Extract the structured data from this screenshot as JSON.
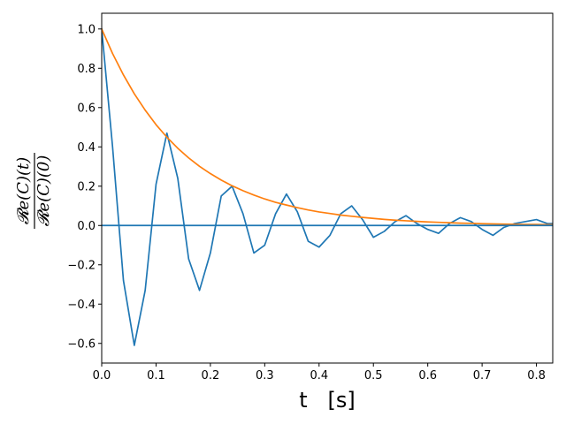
{
  "chart_data": {
    "type": "line",
    "xlabel": "t   [s]",
    "ylabel": {
      "numerator": "𝓡e(C)(t)",
      "denominator": "𝓡e(C)(0)"
    },
    "xlim": [
      0.0,
      0.83
    ],
    "ylim": [
      -0.7,
      1.08
    ],
    "xticks": [
      {
        "value": 0.0,
        "label": "0.0"
      },
      {
        "value": 0.1,
        "label": "0.1"
      },
      {
        "value": 0.2,
        "label": "0.2"
      },
      {
        "value": 0.3,
        "label": "0.3"
      },
      {
        "value": 0.4,
        "label": "0.4"
      },
      {
        "value": 0.5,
        "label": "0.5"
      },
      {
        "value": 0.6,
        "label": "0.6"
      },
      {
        "value": 0.7,
        "label": "0.7"
      },
      {
        "value": 0.8,
        "label": "0.8"
      }
    ],
    "yticks": [
      {
        "value": -0.6,
        "label": "−0.6"
      },
      {
        "value": -0.4,
        "label": "−0.4"
      },
      {
        "value": -0.2,
        "label": "−0.2"
      },
      {
        "value": 0.0,
        "label": "0.0"
      },
      {
        "value": 0.2,
        "label": "0.2"
      },
      {
        "value": 0.4,
        "label": "0.4"
      },
      {
        "value": 0.6,
        "label": "0.6"
      },
      {
        "value": 0.8,
        "label": "0.8"
      },
      {
        "value": 1.0,
        "label": "1.0"
      }
    ],
    "grid": false,
    "series": [
      {
        "color": "#1f77b4",
        "x": [
          0.0,
          0.02,
          0.04,
          0.06,
          0.08,
          0.1,
          0.12,
          0.14,
          0.16,
          0.18,
          0.2,
          0.22,
          0.24,
          0.26,
          0.28,
          0.3,
          0.32,
          0.34,
          0.36,
          0.38,
          0.4,
          0.42,
          0.44,
          0.46,
          0.48,
          0.5,
          0.52,
          0.54,
          0.56,
          0.58,
          0.6,
          0.62,
          0.64,
          0.66,
          0.68,
          0.7,
          0.72,
          0.74,
          0.76,
          0.78,
          0.8,
          0.82,
          0.83
        ],
        "y": [
          1.0,
          0.4,
          -0.28,
          -0.61,
          -0.33,
          0.21,
          0.47,
          0.24,
          -0.17,
          -0.33,
          -0.14,
          0.15,
          0.2,
          0.06,
          -0.14,
          -0.1,
          0.06,
          0.16,
          0.07,
          -0.08,
          -0.11,
          -0.05,
          0.06,
          0.1,
          0.03,
          -0.06,
          -0.03,
          0.02,
          0.05,
          0.01,
          -0.02,
          -0.04,
          0.01,
          0.04,
          0.02,
          -0.02,
          -0.05,
          -0.01,
          0.01,
          0.02,
          0.03,
          0.01,
          0.01
        ]
      },
      {
        "color": "#ff7f0e",
        "function": "exp(-t/0.15)",
        "x": [
          0.0,
          0.02,
          0.04,
          0.06,
          0.08,
          0.1,
          0.12,
          0.14,
          0.16,
          0.18,
          0.2,
          0.22,
          0.24,
          0.26,
          0.28,
          0.3,
          0.32,
          0.34,
          0.36,
          0.38,
          0.4,
          0.42,
          0.44,
          0.46,
          0.48,
          0.5,
          0.52,
          0.54,
          0.56,
          0.58,
          0.6,
          0.62,
          0.64,
          0.66,
          0.68,
          0.7,
          0.72,
          0.74,
          0.76,
          0.78,
          0.8,
          0.82,
          0.83
        ],
        "y": [
          1.0,
          0.875,
          0.766,
          0.67,
          0.587,
          0.513,
          0.449,
          0.393,
          0.344,
          0.301,
          0.264,
          0.231,
          0.202,
          0.177,
          0.155,
          0.135,
          0.118,
          0.104,
          0.091,
          0.079,
          0.069,
          0.061,
          0.053,
          0.047,
          0.041,
          0.036,
          0.031,
          0.027,
          0.024,
          0.021,
          0.018,
          0.016,
          0.014,
          0.012,
          0.011,
          0.009,
          0.008,
          0.007,
          0.006,
          0.005,
          0.005,
          0.004,
          0.004
        ]
      },
      {
        "color": "#1f77b4",
        "x": [
          0.0,
          0.83
        ],
        "y": [
          0.0,
          0.0
        ]
      }
    ]
  }
}
